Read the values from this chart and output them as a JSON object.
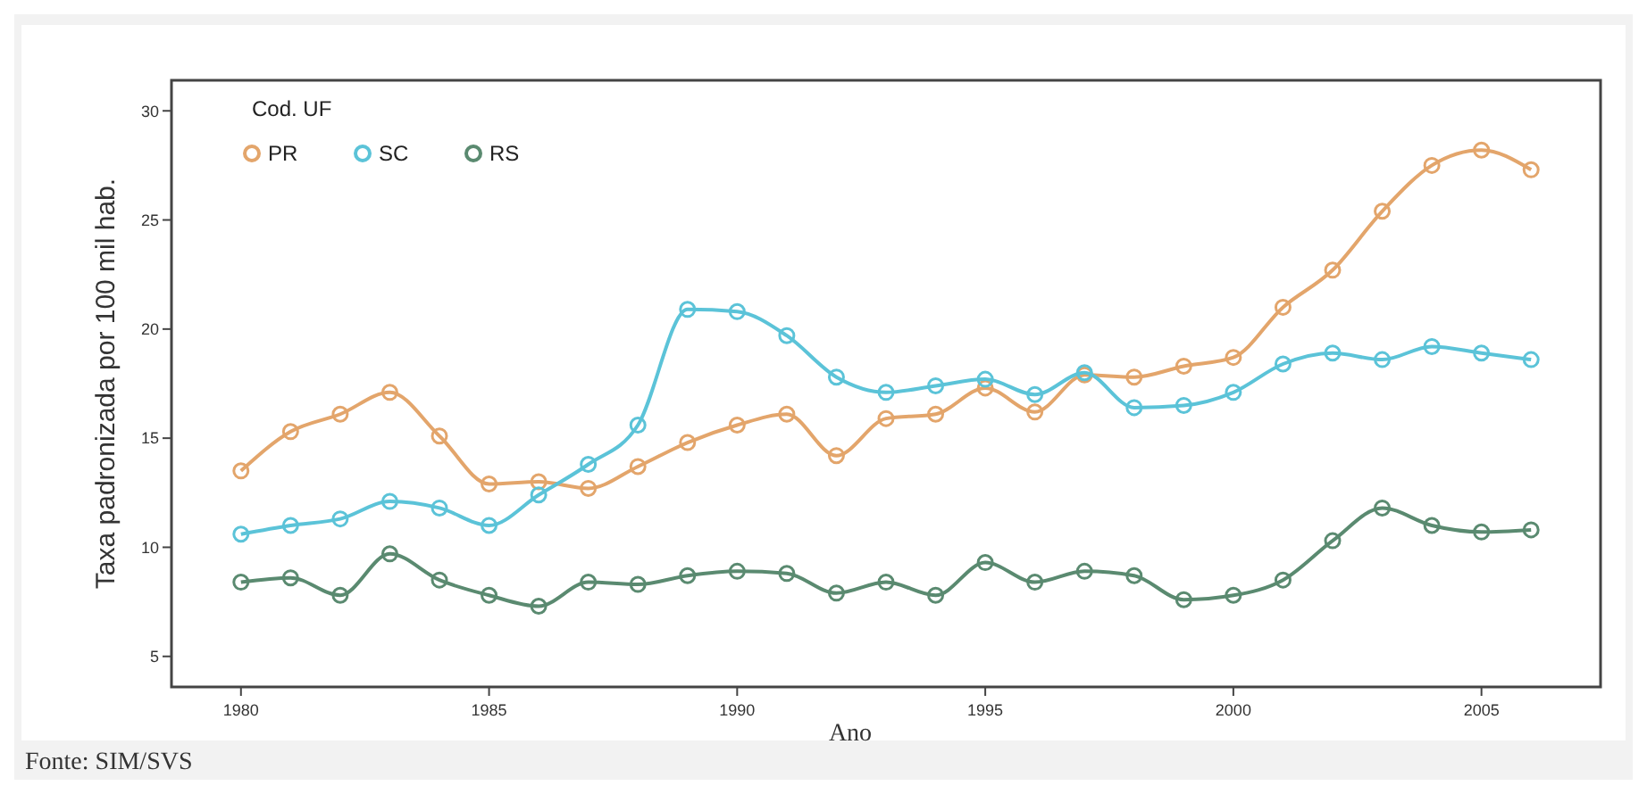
{
  "chart_data": {
    "type": "line",
    "xlabel": "Ano",
    "ylabel": "Taxa padronizada por 100 mil hab.",
    "legend_title": "Cod. UF",
    "annotations": [
      "Fonte: SIM/SVS"
    ],
    "x": [
      1980,
      1981,
      1982,
      1983,
      1984,
      1985,
      1986,
      1987,
      1988,
      1989,
      1990,
      1991,
      1992,
      1993,
      1994,
      1995,
      1996,
      1997,
      1998,
      1999,
      2000,
      2001,
      2002,
      2003,
      2004,
      2005,
      2006
    ],
    "series": [
      {
        "name": "PR",
        "color": "#e3a56b",
        "values": [
          13.5,
          15.3,
          16.1,
          17.1,
          15.1,
          12.9,
          13.0,
          12.7,
          13.7,
          14.8,
          15.6,
          16.1,
          14.2,
          15.9,
          16.1,
          17.3,
          16.2,
          17.9,
          17.8,
          18.3,
          18.7,
          21.0,
          22.7,
          25.4,
          27.5,
          28.2,
          27.3
        ]
      },
      {
        "name": "SC",
        "color": "#5bc3d8",
        "values": [
          10.6,
          11.0,
          11.3,
          12.1,
          11.8,
          11.0,
          12.4,
          13.8,
          15.6,
          20.9,
          20.8,
          19.7,
          17.8,
          17.1,
          17.4,
          17.7,
          17.0,
          18.0,
          16.4,
          16.5,
          17.1,
          18.4,
          18.9,
          18.6,
          19.2,
          18.9,
          18.6
        ]
      },
      {
        "name": "RS",
        "color": "#5a8a70",
        "values": [
          8.4,
          8.6,
          7.8,
          9.7,
          8.5,
          7.8,
          7.3,
          8.4,
          8.3,
          8.7,
          8.9,
          8.8,
          7.9,
          8.4,
          7.8,
          9.3,
          8.4,
          8.9,
          8.7,
          7.6,
          7.8,
          8.5,
          10.3,
          11.8,
          11.0,
          10.7,
          10.8
        ]
      }
    ],
    "xlim": [
      1978.6,
      2007.4
    ],
    "xticks": [
      1980,
      1985,
      1990,
      1995,
      2000,
      2005
    ],
    "ylim": [
      3.6,
      31.4
    ],
    "yticks": [
      5,
      10,
      15,
      20,
      25,
      30
    ],
    "grid": false,
    "legend": "top left",
    "marker": "circle",
    "line_style": "solid"
  }
}
